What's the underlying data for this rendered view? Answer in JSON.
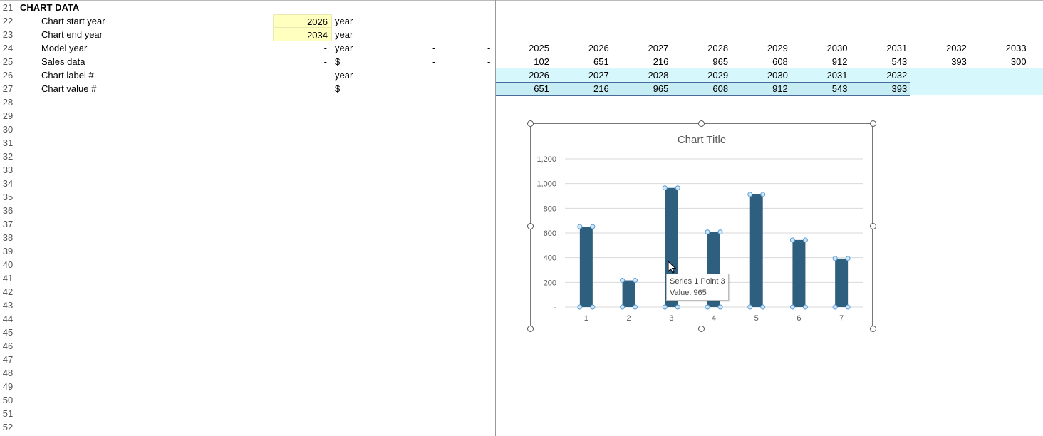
{
  "rows": [
    21,
    22,
    23,
    24,
    25,
    26,
    27,
    28,
    29,
    30,
    31,
    32,
    33,
    34,
    35,
    36,
    37,
    38,
    39,
    40,
    41,
    42,
    43,
    44,
    45,
    46,
    47,
    48,
    49,
    50,
    51,
    52
  ],
  "section_title": "CHART DATA",
  "labels": {
    "start_year": "Chart start year",
    "end_year": "Chart end year",
    "model_year": "Model year",
    "sales_data": "Sales data",
    "chart_label": "Chart label #",
    "chart_value": "Chart value #"
  },
  "inputs": {
    "start_year": "2026",
    "end_year": "2034"
  },
  "units": {
    "start_year": "year",
    "end_year": "year",
    "model_year": "year",
    "sales_data": "$",
    "chart_label": "year",
    "chart_value": "$"
  },
  "dash": "-",
  "model_years": [
    "2025",
    "2026",
    "2027",
    "2028",
    "2029",
    "2030",
    "2031",
    "2032",
    "2033"
  ],
  "sales": [
    "102",
    "651",
    "216",
    "965",
    "608",
    "912",
    "543",
    "393",
    "300"
  ],
  "chart_labels": [
    "2026",
    "2027",
    "2028",
    "2029",
    "2030",
    "2031",
    "2032"
  ],
  "chart_values": [
    "651",
    "216",
    "965",
    "608",
    "912",
    "543",
    "393"
  ],
  "colors": {
    "bar": "#2e5f7f",
    "highlight": "#d6f7fb",
    "input": "#ffffc0"
  },
  "tooltip": {
    "line1": "Series 1 Point 3",
    "line2": "Value: 965"
  },
  "chart_data": {
    "type": "bar",
    "title": "Chart Title",
    "categories": [
      "1",
      "2",
      "3",
      "4",
      "5",
      "6",
      "7"
    ],
    "values": [
      651,
      216,
      965,
      608,
      912,
      543,
      393
    ],
    "ylim": [
      0,
      1200
    ],
    "yticks": [
      "-",
      "200",
      "400",
      "600",
      "800",
      "1,000",
      "1,200"
    ],
    "grid": true,
    "selected_series": "Series 1"
  }
}
